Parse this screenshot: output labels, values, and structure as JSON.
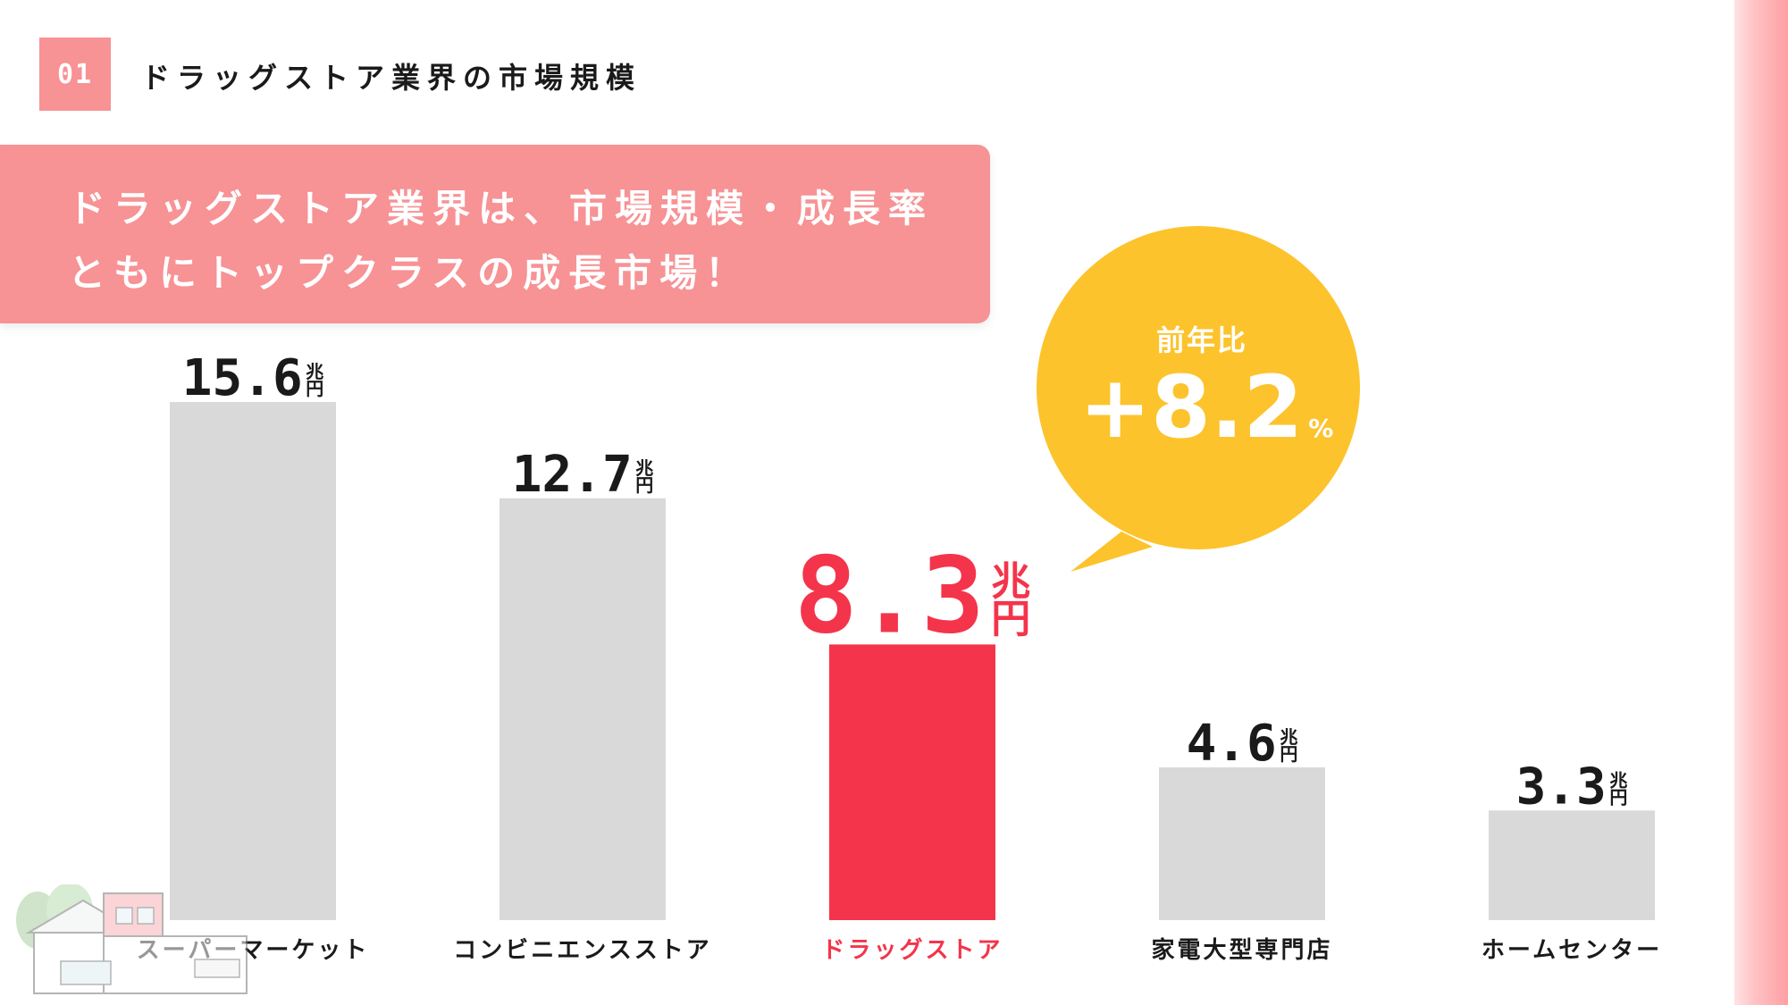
{
  "section": {
    "number": "01",
    "title": "ドラッグストア業界の市場規模"
  },
  "headline": {
    "line1": "ドラッグストア業界は、市場規模・成長率",
    "line2": "ともにトップクラスの成長市場！"
  },
  "callout": {
    "label": "前年比",
    "value": "+8.2",
    "unit": "%"
  },
  "colors": {
    "accent": "#f4344b",
    "bar_default": "#d9d9d9",
    "badge": "#f79295",
    "bubble": "#fcc32c"
  },
  "chart_data": {
    "type": "bar",
    "title": "",
    "xlabel": "",
    "ylabel": "",
    "unit_top": "兆",
    "unit_bottom": "円",
    "ylim": [
      0,
      15.6
    ],
    "categories": [
      "スーパーマーケット",
      "コンビニエンスストア",
      "ドラッグストア",
      "家電大型専門店",
      "ホームセンター"
    ],
    "values": [
      15.6,
      12.7,
      8.3,
      4.6,
      3.3
    ],
    "value_labels": [
      "15.6",
      "12.7",
      "8.3",
      "4.6",
      "3.3"
    ],
    "highlight_index": 2,
    "grid": false,
    "legend": "none"
  }
}
